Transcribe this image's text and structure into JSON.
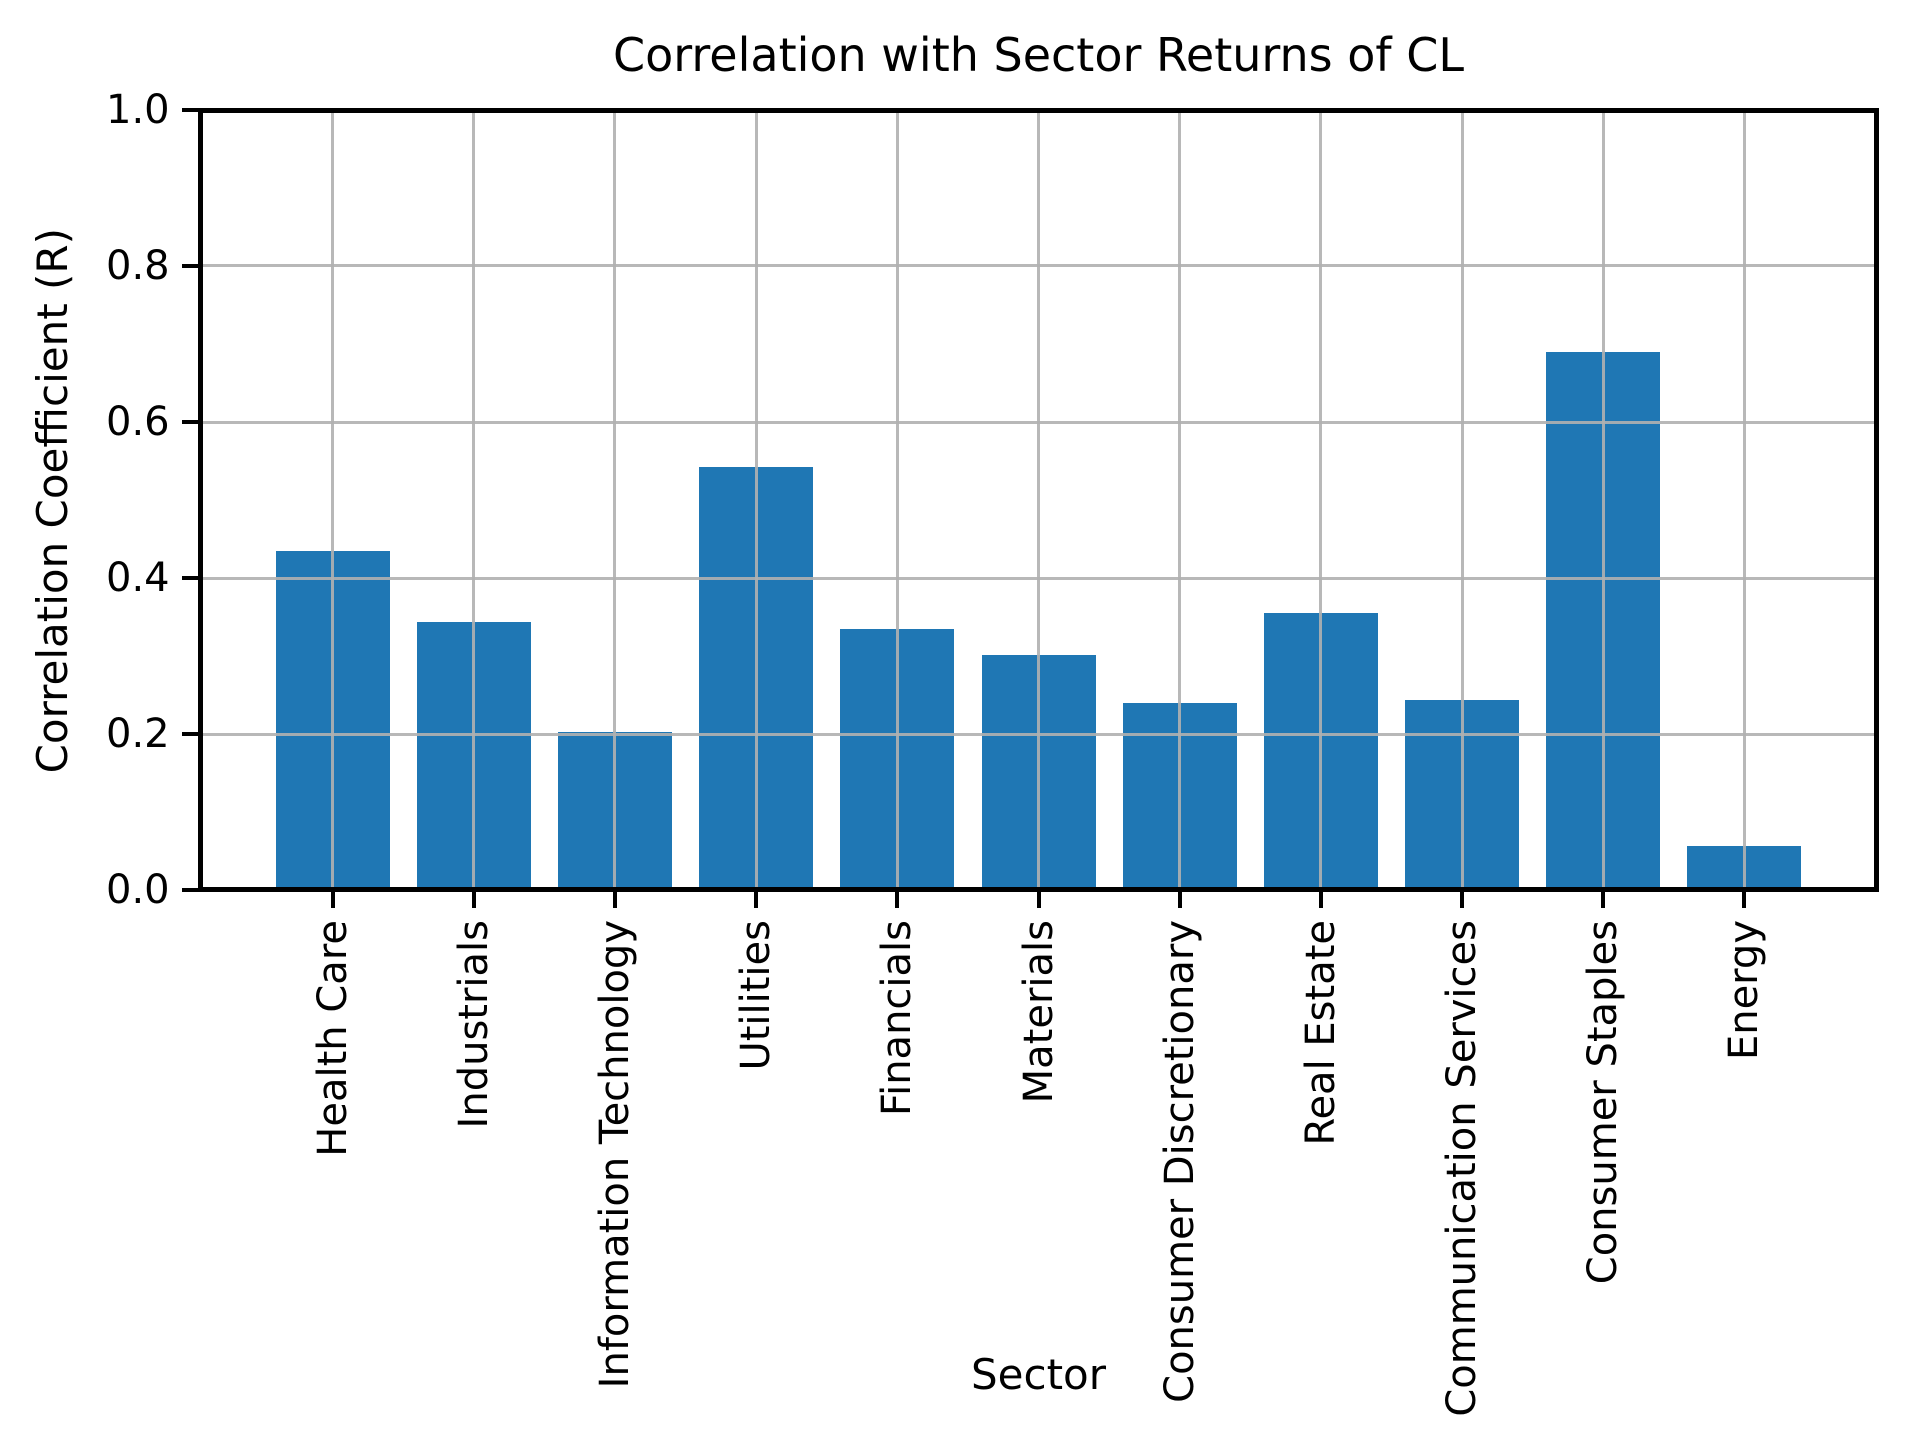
{
  "chart_data": {
    "type": "bar",
    "title": "Correlation with Sector Returns of CL",
    "xlabel": "Sector",
    "ylabel": "Correlation Coefficient (R)",
    "categories": [
      "Health Care",
      "Industrials",
      "Information Technology",
      "Utilities",
      "Financials",
      "Materials",
      "Consumer Discretionary",
      "Real Estate",
      "Communication Services",
      "Consumer Staples",
      "Energy"
    ],
    "values": [
      0.435,
      0.343,
      0.203,
      0.542,
      0.335,
      0.301,
      0.24,
      0.355,
      0.243,
      0.69,
      0.057
    ],
    "ylim": [
      0.0,
      1.0
    ],
    "yticks": [
      0.0,
      0.2,
      0.4,
      0.6,
      0.8,
      1.0
    ],
    "ytick_labels": [
      "0.0",
      "0.2",
      "0.4",
      "0.6",
      "0.8",
      "1.0"
    ],
    "grid": true,
    "legend_position": "none",
    "bar_color": "#1f77b4",
    "grid_color": "#b0b0b0",
    "axis_color": "#000000",
    "background_color": "#ffffff",
    "text_color": "#000000"
  }
}
